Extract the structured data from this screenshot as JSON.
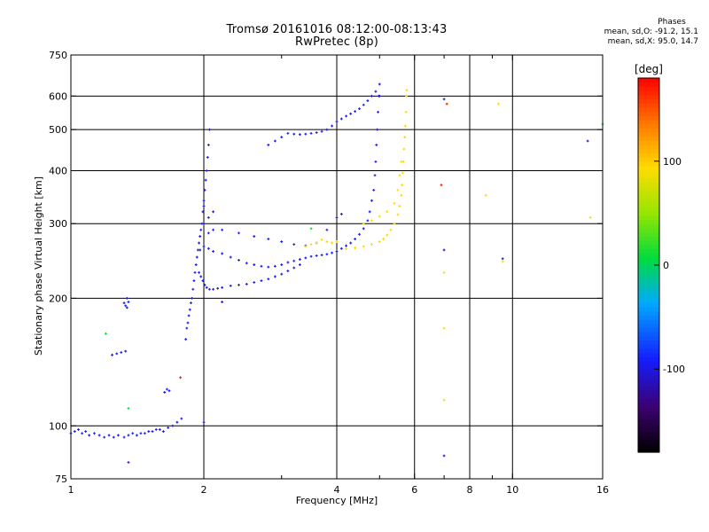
{
  "header": {
    "title_line1": "Tromsø 20161016 08:12:00-08:13:43",
    "title_line2": "RwPretec (8p)"
  },
  "stats": {
    "title": "Phases",
    "line_o": "mean, sd,O: -91.2, 15.1",
    "line_x": "mean, sd,X:  95.0, 14.7"
  },
  "colors": {
    "o_trace": "#1a3cff",
    "x_trace": "#ffd400",
    "grid": "#000000",
    "background": "#ffffff"
  },
  "chart_data": {
    "type": "scatter",
    "title": "Tromsø 20161016 08:12:00-08:13:43",
    "subtitle": "RwPretec (8p)",
    "xlabel": "Frequency [MHz]",
    "ylabel": "Stationary phase Virtual Height [km]",
    "xscale": "log",
    "yscale": "log",
    "xlim": [
      1,
      16
    ],
    "ylim": [
      75,
      750
    ],
    "x_ticks": [
      1,
      2,
      4,
      6,
      8,
      10,
      16
    ],
    "x_minor_ticks": [
      3,
      5,
      7,
      9
    ],
    "y_ticks": [
      75,
      100,
      200,
      300,
      400,
      500,
      600,
      750
    ],
    "x_grid": [
      2,
      4,
      6,
      8,
      10
    ],
    "y_grid": [
      100,
      200,
      300,
      400,
      500,
      600
    ],
    "grid": true,
    "colorbar": {
      "label": "[deg]",
      "range": [
        -180,
        180
      ],
      "ticks": [
        100,
        0,
        -100
      ]
    },
    "series": [
      {
        "color_phase": -95,
        "points": [
          [
            1.0,
            96
          ],
          [
            1.02,
            97
          ],
          [
            1.04,
            98
          ],
          [
            1.06,
            96
          ],
          [
            1.08,
            97
          ],
          [
            1.1,
            95
          ],
          [
            1.13,
            96
          ],
          [
            1.16,
            95
          ],
          [
            1.19,
            94
          ],
          [
            1.22,
            95
          ],
          [
            1.25,
            94
          ],
          [
            1.28,
            95
          ],
          [
            1.32,
            94
          ],
          [
            1.35,
            95
          ],
          [
            1.38,
            96
          ],
          [
            1.41,
            95
          ],
          [
            1.44,
            96
          ],
          [
            1.47,
            96
          ],
          [
            1.5,
            97
          ],
          [
            1.53,
            97
          ],
          [
            1.56,
            98
          ],
          [
            1.59,
            98
          ],
          [
            1.62,
            97
          ],
          [
            1.66,
            99
          ],
          [
            1.7,
            100
          ],
          [
            1.74,
            102
          ],
          [
            1.78,
            104
          ],
          [
            1.24,
            147
          ],
          [
            1.27,
            148
          ],
          [
            1.3,
            149
          ],
          [
            1.33,
            150
          ],
          [
            1.32,
            195
          ],
          [
            1.33,
            192
          ],
          [
            1.34,
            190
          ],
          [
            1.35,
            196
          ],
          [
            1.34,
            200
          ],
          [
            1.63,
            120
          ],
          [
            1.65,
            122
          ],
          [
            1.67,
            121
          ],
          [
            1.82,
            160
          ],
          [
            1.83,
            170
          ],
          [
            1.84,
            175
          ],
          [
            1.85,
            182
          ],
          [
            1.86,
            188
          ],
          [
            1.87,
            195
          ],
          [
            1.88,
            200
          ],
          [
            1.89,
            210
          ],
          [
            1.9,
            220
          ],
          [
            1.91,
            230
          ],
          [
            1.92,
            240
          ],
          [
            1.93,
            250
          ],
          [
            1.94,
            260
          ],
          [
            1.95,
            270
          ],
          [
            1.96,
            280
          ],
          [
            1.97,
            290
          ],
          [
            1.98,
            300
          ],
          [
            1.99,
            320
          ],
          [
            2.0,
            340
          ],
          [
            2.01,
            360
          ],
          [
            2.02,
            380
          ],
          [
            2.03,
            400
          ],
          [
            2.04,
            430
          ],
          [
            2.05,
            460
          ],
          [
            2.06,
            500
          ],
          [
            1.95,
            230
          ],
          [
            1.97,
            225
          ],
          [
            1.99,
            220
          ],
          [
            2.01,
            215
          ],
          [
            2.03,
            212
          ],
          [
            2.06,
            210
          ],
          [
            2.1,
            210
          ],
          [
            2.15,
            211
          ],
          [
            2.2,
            212
          ],
          [
            2.3,
            214
          ],
          [
            2.4,
            215
          ],
          [
            2.5,
            216
          ],
          [
            2.6,
            218
          ],
          [
            2.7,
            220
          ],
          [
            2.8,
            222
          ],
          [
            2.9,
            225
          ],
          [
            3.0,
            228
          ],
          [
            3.1,
            232
          ],
          [
            3.2,
            236
          ],
          [
            3.3,
            240
          ],
          [
            1.96,
            260
          ],
          [
            2.0,
            265
          ],
          [
            2.05,
            262
          ],
          [
            2.1,
            258
          ],
          [
            2.2,
            255
          ],
          [
            2.3,
            250
          ],
          [
            2.4,
            246
          ],
          [
            2.5,
            242
          ],
          [
            2.6,
            240
          ],
          [
            2.7,
            238
          ],
          [
            2.8,
            237
          ],
          [
            2.9,
            238
          ],
          [
            3.0,
            240
          ],
          [
            3.1,
            243
          ],
          [
            3.2,
            245
          ],
          [
            3.3,
            247
          ],
          [
            3.4,
            249
          ],
          [
            3.5,
            251
          ],
          [
            3.6,
            252
          ],
          [
            3.7,
            253
          ],
          [
            3.8,
            254
          ],
          [
            3.9,
            256
          ],
          [
            4.0,
            258
          ],
          [
            4.1,
            262
          ],
          [
            4.2,
            266
          ],
          [
            4.3,
            270
          ],
          [
            4.4,
            276
          ],
          [
            4.5,
            283
          ],
          [
            4.6,
            292
          ],
          [
            4.7,
            305
          ],
          [
            4.75,
            320
          ],
          [
            4.8,
            340
          ],
          [
            4.85,
            360
          ],
          [
            4.88,
            390
          ],
          [
            4.9,
            420
          ],
          [
            4.92,
            460
          ],
          [
            4.94,
            500
          ],
          [
            4.96,
            550
          ],
          [
            4.98,
            600
          ],
          [
            5.0,
            640
          ],
          [
            2.0,
            300
          ],
          [
            2.05,
            310
          ],
          [
            2.1,
            320
          ],
          [
            2.0,
            330
          ],
          [
            2.05,
            285
          ],
          [
            2.1,
            290
          ],
          [
            2.2,
            290
          ],
          [
            2.4,
            285
          ],
          [
            2.6,
            280
          ],
          [
            2.8,
            276
          ],
          [
            3.0,
            272
          ],
          [
            3.2,
            268
          ],
          [
            3.4,
            266
          ],
          [
            3.6,
            270
          ],
          [
            3.8,
            290
          ],
          [
            4.0,
            310
          ],
          [
            4.1,
            316
          ],
          [
            2.8,
            460
          ],
          [
            2.9,
            470
          ],
          [
            3.0,
            480
          ],
          [
            3.1,
            490
          ],
          [
            3.2,
            488
          ],
          [
            3.3,
            487
          ],
          [
            3.4,
            488
          ],
          [
            3.5,
            490
          ],
          [
            3.6,
            492
          ],
          [
            3.7,
            495
          ],
          [
            3.8,
            500
          ],
          [
            3.9,
            510
          ],
          [
            4.0,
            522
          ],
          [
            4.1,
            530
          ],
          [
            4.2,
            538
          ],
          [
            4.3,
            545
          ],
          [
            4.4,
            552
          ],
          [
            4.5,
            560
          ],
          [
            4.6,
            572
          ],
          [
            4.7,
            585
          ],
          [
            4.8,
            600
          ],
          [
            4.9,
            615
          ],
          [
            1.35,
            82
          ],
          [
            2.0,
            102
          ],
          [
            2.2,
            196
          ],
          [
            5.0,
            600
          ],
          [
            7.0,
            590
          ],
          [
            7.0,
            260
          ],
          [
            7.0,
            85
          ],
          [
            9.5,
            248
          ],
          [
            14.8,
            470
          ]
        ]
      },
      {
        "color_phase": 95,
        "points": [
          [
            3.4,
            265
          ],
          [
            3.5,
            268
          ],
          [
            3.6,
            270
          ],
          [
            3.7,
            275
          ],
          [
            3.8,
            272
          ],
          [
            3.9,
            270
          ],
          [
            4.0,
            272
          ],
          [
            4.2,
            262
          ],
          [
            4.4,
            263
          ],
          [
            4.6,
            265
          ],
          [
            4.8,
            268
          ],
          [
            5.0,
            272
          ],
          [
            5.1,
            276
          ],
          [
            5.2,
            282
          ],
          [
            5.3,
            290
          ],
          [
            5.4,
            300
          ],
          [
            5.5,
            315
          ],
          [
            5.55,
            330
          ],
          [
            5.6,
            350
          ],
          [
            5.62,
            370
          ],
          [
            5.64,
            395
          ],
          [
            5.66,
            420
          ],
          [
            5.68,
            450
          ],
          [
            5.7,
            480
          ],
          [
            5.72,
            510
          ],
          [
            5.74,
            550
          ],
          [
            5.75,
            600
          ],
          [
            5.76,
            620
          ],
          [
            4.6,
            300
          ],
          [
            4.8,
            305
          ],
          [
            5.0,
            312
          ],
          [
            5.2,
            320
          ],
          [
            5.4,
            335
          ],
          [
            5.5,
            360
          ],
          [
            5.55,
            390
          ],
          [
            5.6,
            420
          ],
          [
            7.0,
            230
          ],
          [
            7.0,
            170
          ],
          [
            7.0,
            115
          ],
          [
            8.7,
            350
          ],
          [
            9.3,
            575
          ],
          [
            9.5,
            244
          ],
          [
            15.0,
            310
          ]
        ]
      },
      {
        "color_phase": 10,
        "points": [
          [
            1.2,
            165
          ],
          [
            1.35,
            110
          ],
          [
            3.5,
            292
          ],
          [
            16.0,
            515
          ]
        ]
      },
      {
        "color_phase": 170,
        "points": [
          [
            1.77,
            130
          ],
          [
            6.9,
            370
          ],
          [
            7.1,
            575
          ]
        ]
      }
    ]
  }
}
